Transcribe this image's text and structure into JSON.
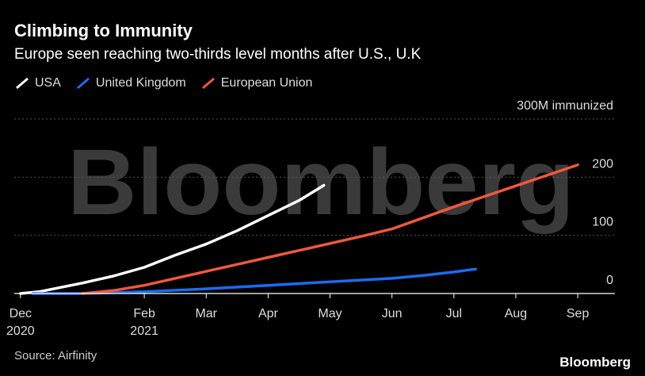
{
  "header": {
    "title": "Climbing to Immunity",
    "subtitle": "Europe seen reaching two-thirds level months after U.S., U.K"
  },
  "footer": {
    "source": "Source: Airfinity",
    "brand": "Bloomberg"
  },
  "watermark": "Bloomberg",
  "colors": {
    "background": "#000000",
    "grid": "#555555",
    "axis": "#ffffff",
    "text": "#ffffff",
    "muted": "#cccccc",
    "watermark": "#3a3a3a"
  },
  "chart_data": {
    "type": "line",
    "title": "Climbing to Immunity",
    "subtitle": "Europe seen reaching two-thirds level months after U.S., U.K",
    "xlabel": "",
    "ylabel": "",
    "x_unit": "months since Dec 1, 2020",
    "xlim": [
      -0.1,
      9.6
    ],
    "ylim": [
      0,
      300
    ],
    "grid": true,
    "legend_position": "top-left",
    "y_ticks": [
      {
        "value": 0,
        "label": "0"
      },
      {
        "value": 100,
        "label": "100"
      },
      {
        "value": 200,
        "label": "200"
      },
      {
        "value": 300,
        "label": "300M immunized"
      }
    ],
    "x_ticks": [
      {
        "value": 0,
        "line1": "Dec",
        "line2": "2020"
      },
      {
        "value": 2,
        "line1": "Feb",
        "line2": "2021"
      },
      {
        "value": 3,
        "line1": "Mar",
        "line2": ""
      },
      {
        "value": 4,
        "line1": "Apr",
        "line2": ""
      },
      {
        "value": 5,
        "line1": "May",
        "line2": ""
      },
      {
        "value": 6,
        "line1": "Jun",
        "line2": ""
      },
      {
        "value": 7,
        "line1": "Jul",
        "line2": ""
      },
      {
        "value": 8,
        "line1": "Aug",
        "line2": ""
      },
      {
        "value": 9,
        "line1": "Sep",
        "line2": ""
      }
    ],
    "series": [
      {
        "name": "USA",
        "color": "#ffffff",
        "x": [
          0,
          0.3,
          1,
          1.5,
          2,
          2.5,
          3,
          3.5,
          4,
          4.5,
          4.9
        ],
        "values": [
          0,
          3,
          18,
          30,
          45,
          66,
          85,
          108,
          134,
          160,
          186
        ]
      },
      {
        "name": "United Kingdom",
        "color": "#1a6cf0",
        "x": [
          0.2,
          1,
          2,
          3,
          4,
          5,
          6,
          6.5,
          7,
          7.35
        ],
        "values": [
          0,
          0,
          3,
          8,
          14,
          20,
          26,
          31,
          37,
          42
        ]
      },
      {
        "name": "European Union",
        "color": "#f0583a",
        "x": [
          1,
          1.5,
          2,
          2.5,
          3,
          3.5,
          4,
          4.5,
          5,
          5.5,
          6,
          6.5,
          7,
          7.5,
          8,
          8.5,
          9
        ],
        "values": [
          0,
          5,
          14,
          26,
          38,
          50,
          62,
          74,
          86,
          98,
          111,
          130,
          149,
          167,
          185,
          203,
          221
        ]
      }
    ]
  }
}
